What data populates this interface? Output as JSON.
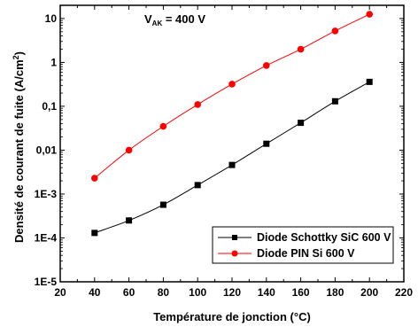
{
  "chart_data": {
    "type": "line",
    "title": "",
    "xlabel": "Température de jonction (°C)",
    "ylabel": "Densité de courant de fuite (A/cm",
    "ylabel_sup": "2",
    "ylabel_end": ")",
    "annotation": {
      "main": "V",
      "sub": "AK",
      "rest": " = 400 V"
    },
    "xlim": [
      20,
      220
    ],
    "ylim": [
      1e-05,
      20
    ],
    "yscale": "log",
    "xticks": [
      20,
      40,
      60,
      80,
      100,
      120,
      140,
      160,
      180,
      200,
      220
    ],
    "xtick_labels": [
      "20",
      "40",
      "60",
      "80",
      "100",
      "120",
      "140",
      "160",
      "180",
      "200",
      "220"
    ],
    "yticks": [
      1e-05,
      0.0001,
      0.001,
      0.01,
      0.1,
      1,
      10
    ],
    "ytick_labels": [
      "1E-5",
      "1E-4",
      "1E-3",
      "0,01",
      "0,1",
      "1",
      "10"
    ],
    "grid": false,
    "legend_position": "bottom-right",
    "series": [
      {
        "name": "Diode Schottky SiC 600 V",
        "color": "#000000",
        "marker": "square",
        "x": [
          40,
          60,
          80,
          100,
          120,
          140,
          160,
          180,
          200
        ],
        "y": [
          0.00013,
          0.00025,
          0.00057,
          0.0016,
          0.0046,
          0.014,
          0.042,
          0.13,
          0.36
        ]
      },
      {
        "name": "Diode PIN Si 600 V",
        "color": "#ff0000",
        "marker": "circle",
        "x": [
          40,
          60,
          80,
          100,
          120,
          140,
          160,
          180,
          200
        ],
        "y": [
          0.0023,
          0.01,
          0.035,
          0.11,
          0.32,
          0.85,
          2.0,
          5.2,
          12.5
        ]
      }
    ]
  }
}
